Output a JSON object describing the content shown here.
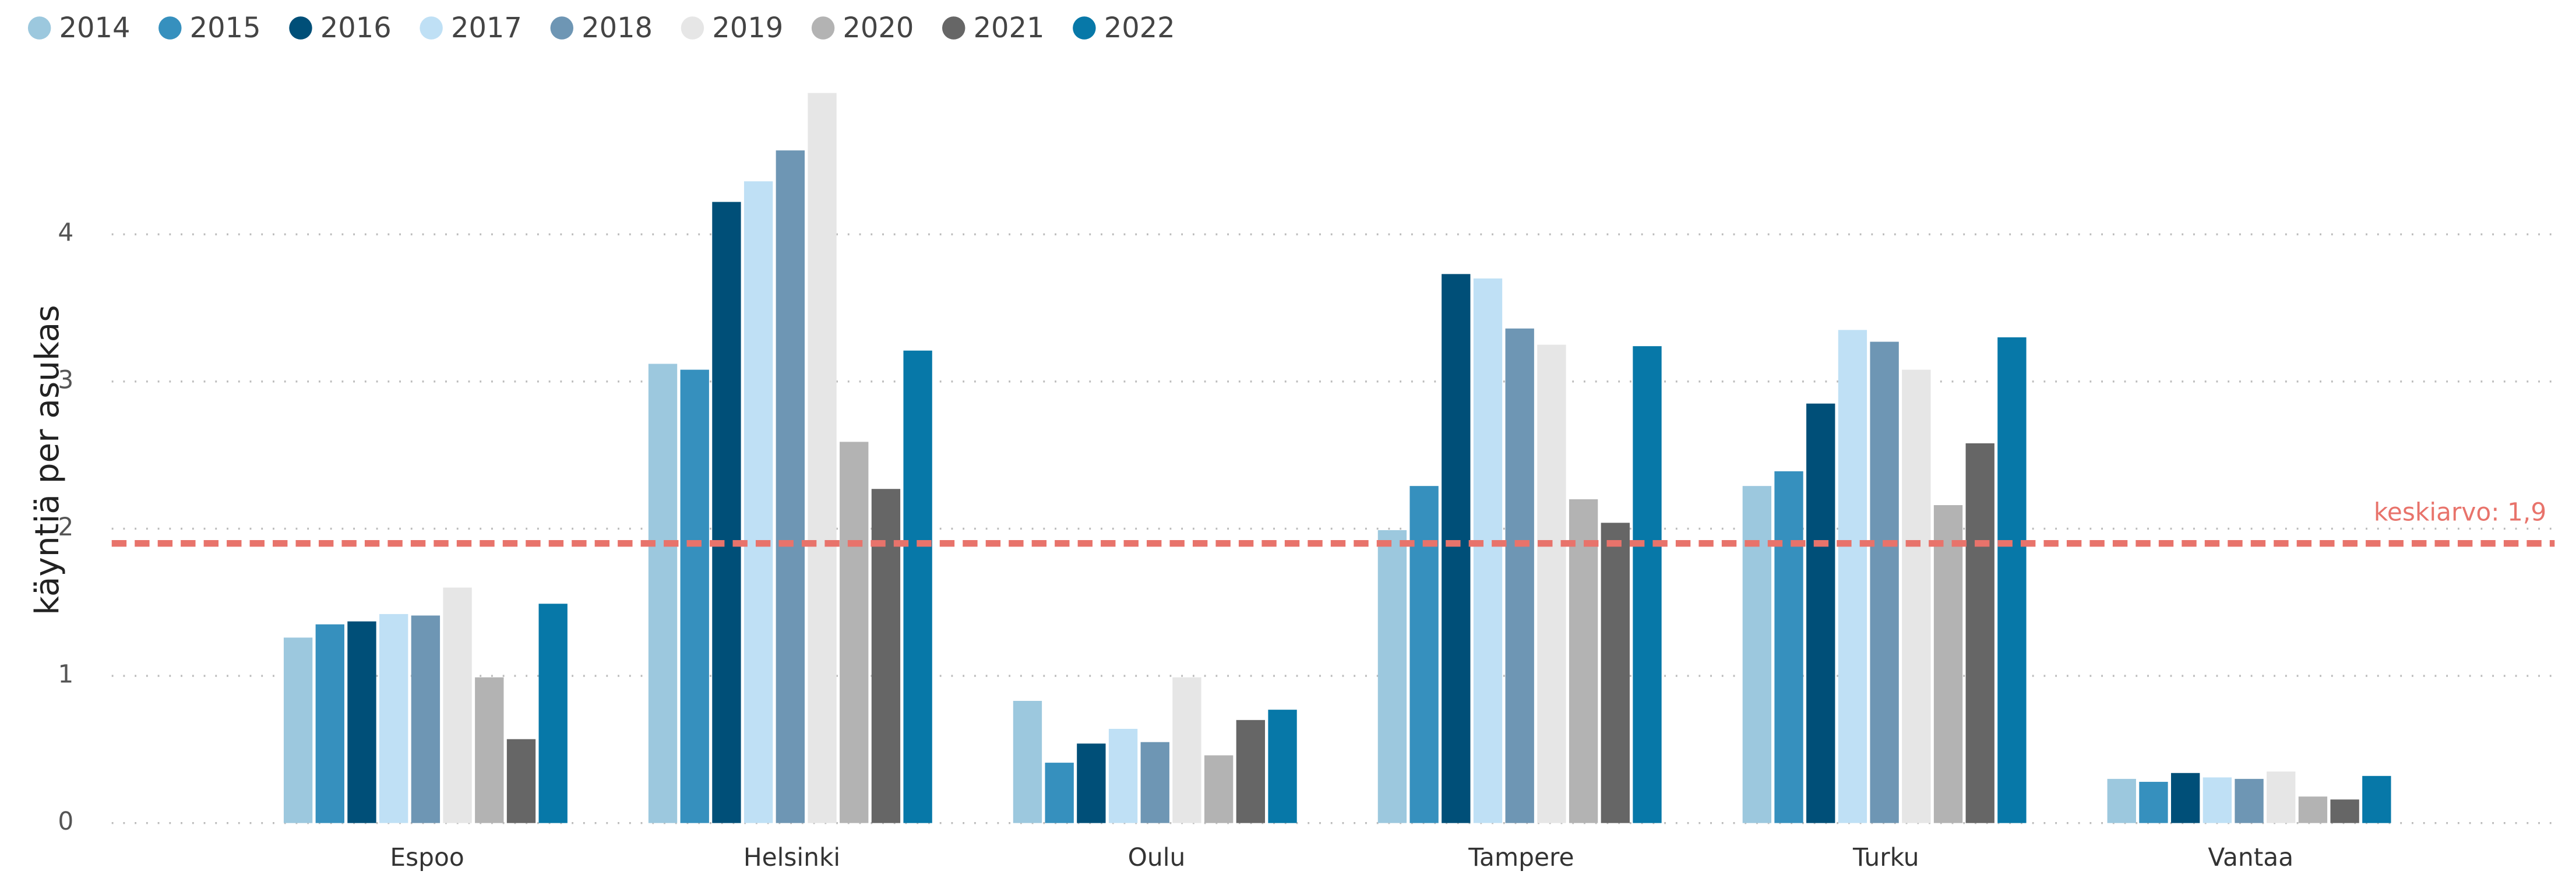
{
  "chart_data": {
    "type": "bar",
    "y_label": "käyntiä per asukas",
    "categories": [
      "Espoo",
      "Helsinki",
      "Oulu",
      "Tampere",
      "Turku",
      "Vantaa"
    ],
    "series": [
      {
        "name": "2014",
        "color": "#9cc8de",
        "values": [
          1.26,
          3.12,
          0.83,
          1.99,
          2.29,
          0.3
        ]
      },
      {
        "name": "2015",
        "color": "#3690be",
        "values": [
          1.35,
          3.08,
          0.41,
          2.29,
          2.39,
          0.28
        ]
      },
      {
        "name": "2016",
        "color": "#004f78",
        "values": [
          1.37,
          4.22,
          0.54,
          3.73,
          2.85,
          0.34
        ]
      },
      {
        "name": "2017",
        "color": "#bfe0f5",
        "values": [
          1.42,
          4.36,
          0.64,
          3.7,
          3.35,
          0.31
        ]
      },
      {
        "name": "2018",
        "color": "#6e96b4",
        "values": [
          1.41,
          4.57,
          0.55,
          3.36,
          3.27,
          0.3
        ]
      },
      {
        "name": "2019",
        "color": "#e6e6e6",
        "values": [
          1.6,
          4.96,
          0.99,
          3.25,
          3.08,
          0.35
        ]
      },
      {
        "name": "2020",
        "color": "#b3b3b3",
        "values": [
          0.99,
          2.59,
          0.46,
          2.2,
          2.16,
          0.18
        ]
      },
      {
        "name": "2021",
        "color": "#666666",
        "values": [
          0.57,
          2.27,
          0.7,
          2.04,
          2.58,
          0.16
        ]
      },
      {
        "name": "2022",
        "color": "#0778a8",
        "values": [
          1.49,
          3.21,
          0.77,
          3.24,
          3.3,
          0.32
        ]
      }
    ],
    "ylim": [
      0,
      5
    ],
    "yticks": [
      0,
      1,
      2,
      3,
      4
    ],
    "grid": true,
    "legend": "top-left",
    "reference_line": {
      "value": 1.9,
      "label": "keskiarvo: 1,9",
      "color": "#e8736b"
    }
  }
}
